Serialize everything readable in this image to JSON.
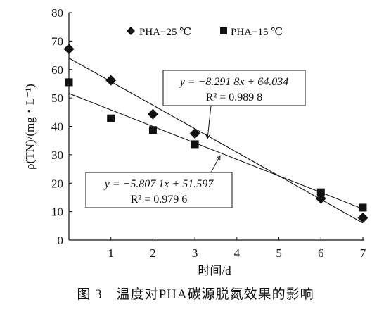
{
  "chart_data": {
    "type": "scatter",
    "xlabel": "时间/d",
    "ylabel": "ρ(TN)/(mg・L⁻¹)",
    "xlim": [
      0,
      7
    ],
    "ylim": [
      0,
      80
    ],
    "xticks": [
      "1",
      "2",
      "3",
      "4",
      "5",
      "6",
      "7"
    ],
    "yticks": [
      "0",
      "10",
      "20",
      "30",
      "40",
      "50",
      "60",
      "70",
      "80"
    ],
    "grid": false,
    "legend_position": "top-right",
    "series": [
      {
        "name": "PHA−25 ℃",
        "marker": "diamond",
        "points": [
          {
            "x": 0,
            "y": 67.2
          },
          {
            "x": 1,
            "y": 56.2
          },
          {
            "x": 2,
            "y": 44.3
          },
          {
            "x": 3,
            "y": 37.5
          },
          {
            "x": 6,
            "y": 14.6
          },
          {
            "x": 7,
            "y": 7.8
          }
        ],
        "trendline": {
          "slope": -8.2918,
          "intercept": 64.034,
          "equation": "y = −8.291 8x + 64.034",
          "r2": "R² = 0.989 8"
        }
      },
      {
        "name": "PHA−15 ℃",
        "marker": "square",
        "points": [
          {
            "x": 0,
            "y": 55.5
          },
          {
            "x": 1,
            "y": 42.8
          },
          {
            "x": 2,
            "y": 38.7
          },
          {
            "x": 3,
            "y": 33.7
          },
          {
            "x": 6,
            "y": 16.8
          },
          {
            "x": 7,
            "y": 11.4
          }
        ],
        "trendline": {
          "slope": -5.8071,
          "intercept": 51.597,
          "equation": "y = −5.807 1x + 51.597",
          "r2": "R² = 0.979 6"
        }
      }
    ]
  },
  "caption": "图 3　温度对PHA碳源脱氮效果的影响"
}
